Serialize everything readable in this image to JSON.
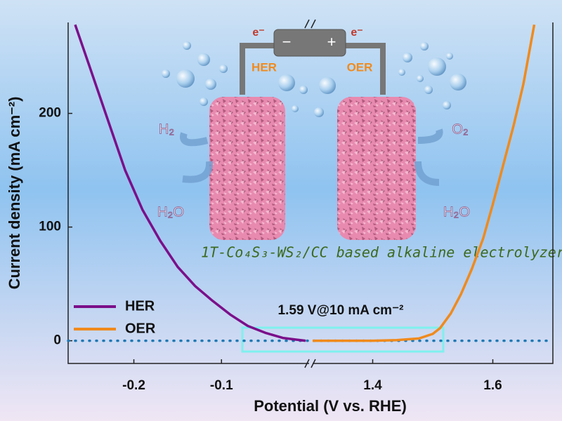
{
  "chart_data": {
    "type": "line",
    "xlabel": "Potential (V vs. RHE)",
    "ylabel": "Current density (mA cm⁻²)",
    "ylim": [
      -20,
      280
    ],
    "yticks": [
      0,
      100,
      200
    ],
    "x_segments": [
      {
        "xlim": [
          -0.275,
          0.0
        ],
        "xticks": [
          -0.2,
          -0.1
        ]
      },
      {
        "xlim": [
          1.3,
          1.7
        ],
        "xticks": [
          1.4,
          1.6
        ]
      }
    ],
    "legend": "lower left",
    "series": [
      {
        "name": "HER",
        "color": "#7b0f8a",
        "x": [
          -0.267,
          -0.25,
          -0.23,
          -0.21,
          -0.19,
          -0.17,
          -0.15,
          -0.13,
          -0.11,
          -0.09,
          -0.07,
          -0.05,
          -0.03,
          -0.015,
          -0.004
        ],
        "values": [
          278,
          240,
          195,
          150,
          115,
          88,
          65,
          48,
          35,
          23,
          13,
          7,
          2.5,
          1,
          0
        ]
      },
      {
        "name": "OER",
        "color": "#f08a1c",
        "x": [
          1.3,
          1.35,
          1.4,
          1.44,
          1.477,
          1.5,
          1.512,
          1.53,
          1.547,
          1.565,
          1.584,
          1.6,
          1.616,
          1.635,
          1.651,
          1.669
        ],
        "values": [
          0,
          0,
          0,
          0.5,
          2,
          6,
          11,
          24,
          41,
          63,
          90,
          120,
          152,
          190,
          226,
          278
        ]
      }
    ],
    "annotations": {
      "overpotential": "1.59 V@10 mA cm⁻²",
      "device": "1T-Co₄S₃-WS₂/CC based alkaline electrolyzer",
      "her_label": "HER",
      "oer_label": "OER",
      "h2": "H₂",
      "o2": "O₂",
      "h2o_left": "H₂O",
      "h2o_right": "H₂O",
      "electron_left": "e⁻",
      "electron_right": "e⁻",
      "minus": "−",
      "plus": "+"
    }
  }
}
